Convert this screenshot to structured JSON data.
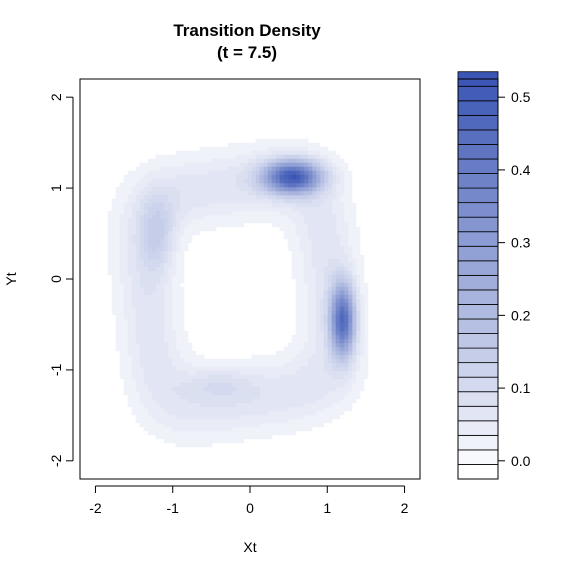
{
  "chart_data": {
    "type": "filled-contour",
    "title": "Transition Density",
    "subtitle": "(t = 7.5)",
    "xlabel": "Xt",
    "ylabel": "Yt",
    "xlim": [
      -2.2,
      2.2
    ],
    "ylim": [
      -2.2,
      2.2
    ],
    "x_ticks": [
      "-2",
      "-1",
      "0",
      "1",
      "2"
    ],
    "y_ticks": [
      "-2",
      "-1",
      "0",
      "1",
      "2"
    ],
    "x_tick_values": [
      -2,
      -1,
      0,
      1,
      2
    ],
    "y_tick_values": [
      -2,
      -1,
      0,
      1,
      2
    ],
    "colorbar": {
      "range": [
        -0.025,
        0.525
      ],
      "step": 0.02,
      "low_color": "#ffffff",
      "high_color": "#3b56b4",
      "tick_labels": [
        "0.0",
        "0.1",
        "0.2",
        "0.3",
        "0.4",
        "0.5"
      ],
      "tick_values": [
        0.0,
        0.1,
        0.2,
        0.3,
        0.4,
        0.5
      ]
    },
    "density_features": {
      "shape": "rotated-square-ring",
      "peaks": [
        {
          "x": 0.55,
          "y": 1.12,
          "value": 0.52
        },
        {
          "x": 1.2,
          "y": -0.45,
          "value": 0.47
        },
        {
          "x": -1.2,
          "y": 0.5,
          "value": 0.16
        },
        {
          "x": -0.4,
          "y": -1.15,
          "value": 0.12
        }
      ],
      "hole_center": {
        "x": -0.15,
        "y": -0.15
      }
    },
    "grid": false,
    "legend": "colorbar-right"
  }
}
